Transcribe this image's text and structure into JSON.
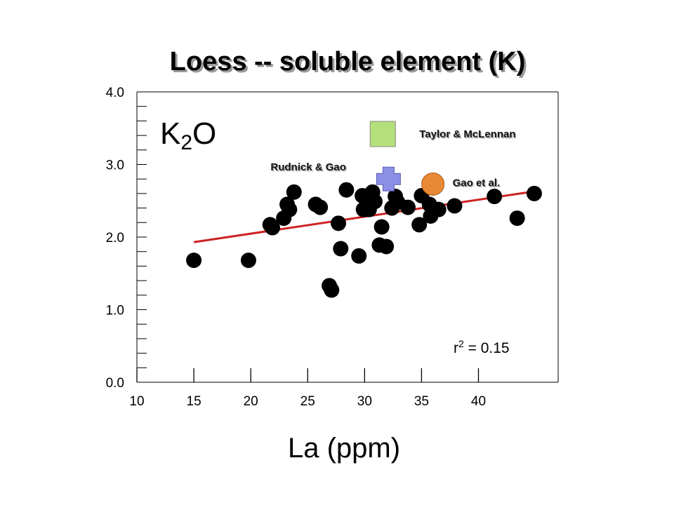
{
  "chart_data": {
    "type": "scatter",
    "title": "Loess -- soluble element (K)",
    "xlabel": "La (ppm)",
    "ylabel": "",
    "panel_label": {
      "main": "K",
      "sub": "2",
      "tail": "O"
    },
    "xlim": [
      10,
      47
    ],
    "ylim": [
      0,
      4
    ],
    "x_ticks": [
      "10",
      "15",
      "20",
      "25",
      "30",
      "35",
      "40"
    ],
    "y_ticks": [
      "0.0",
      "1.0",
      "2.0",
      "3.0",
      "4.0"
    ],
    "grid": false,
    "annotation": {
      "r2_label": "r",
      "r2_sup": "2",
      "r2_value": " = 0.15"
    },
    "trendline": {
      "x": [
        15,
        44.5
      ],
      "y": [
        1.93,
        2.62
      ],
      "color": "#cc2222"
    },
    "series": [
      {
        "marker_color": "#000000",
        "points": [
          [
            15.0,
            1.68
          ],
          [
            19.8,
            1.68
          ],
          [
            21.7,
            2.17
          ],
          [
            21.9,
            2.13
          ],
          [
            22.9,
            2.26
          ],
          [
            23.2,
            2.45
          ],
          [
            23.4,
            2.38
          ],
          [
            23.8,
            2.62
          ],
          [
            25.7,
            2.45
          ],
          [
            26.1,
            2.41
          ],
          [
            26.9,
            1.33
          ],
          [
            27.1,
            1.27
          ],
          [
            27.7,
            2.19
          ],
          [
            27.9,
            1.84
          ],
          [
            28.4,
            2.65
          ],
          [
            29.5,
            1.74
          ],
          [
            29.8,
            2.57
          ],
          [
            29.9,
            2.38
          ],
          [
            30.3,
            2.57
          ],
          [
            30.4,
            2.38
          ],
          [
            30.7,
            2.62
          ],
          [
            30.9,
            2.49
          ],
          [
            31.3,
            1.89
          ],
          [
            31.5,
            2.14
          ],
          [
            31.9,
            1.87
          ],
          [
            32.4,
            2.4
          ],
          [
            32.7,
            2.56
          ],
          [
            32.9,
            2.48
          ],
          [
            33.8,
            2.41
          ],
          [
            34.8,
            2.17
          ],
          [
            35.0,
            2.57
          ],
          [
            35.7,
            2.45
          ],
          [
            35.8,
            2.29
          ],
          [
            36.5,
            2.38
          ],
          [
            37.9,
            2.43
          ],
          [
            41.4,
            2.56
          ],
          [
            43.4,
            2.26
          ],
          [
            44.9,
            2.6
          ]
        ]
      }
    ],
    "references": [
      {
        "name": "Taylor & McLennan",
        "x": 31.6,
        "y": 3.42,
        "marker": "square",
        "color": "#b4e07a"
      },
      {
        "name": "Rudnick & Gao",
        "x": 32.1,
        "y": 2.8,
        "marker": "cross",
        "color": "#8b8fe6"
      },
      {
        "name": "Gao et al.",
        "x": 36.0,
        "y": 2.73,
        "marker": "circle",
        "color": "#e88a35"
      }
    ]
  }
}
